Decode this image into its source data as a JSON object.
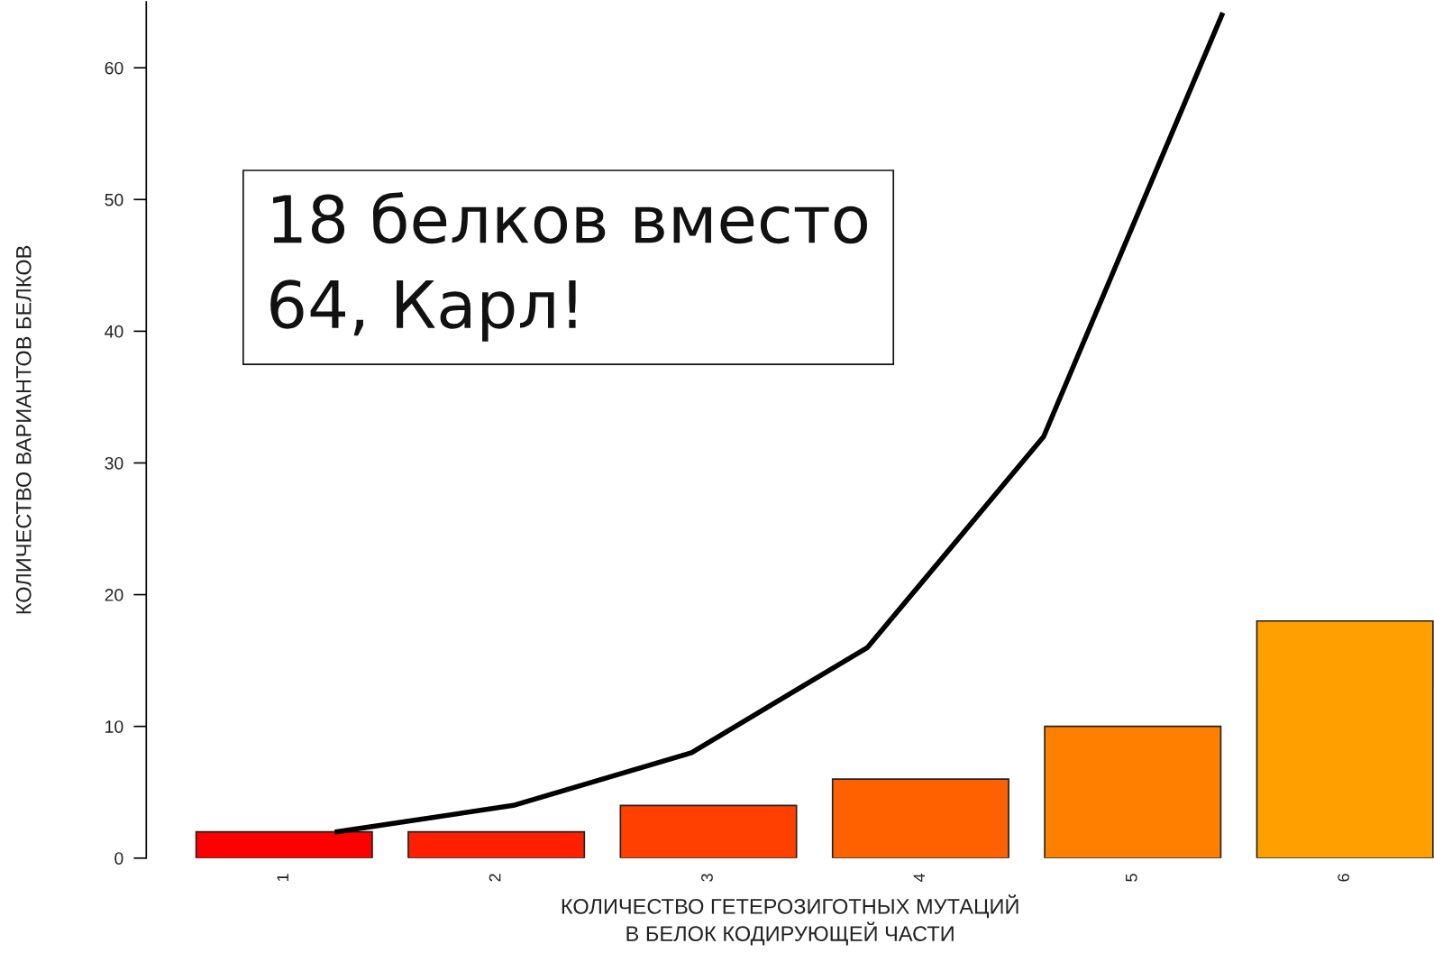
{
  "chart_data": {
    "type": "bar",
    "xlabel": "КОЛИЧЕСТВО ГЕТЕРОЗИГОТНЫХ МУТАЦИЙ\nВ БЕЛОК КОДИРУЮЩЕЙ ЧАСТИ",
    "ylabel": "КОЛИЧЕСТВО ВАРИАНТОВ БЕЛКОВ",
    "annotations": [
      "18 белков вместо\n64, Карл!"
    ],
    "series": [
      {
        "x": [
          1,
          2,
          3,
          4,
          5,
          6
        ],
        "values": [
          2,
          2,
          4,
          6,
          10,
          18
        ],
        "colors": [
          "#ff0000",
          "#ff2000",
          "#ff4000",
          "#ff6000",
          "#ff8000",
          "#ffa000"
        ]
      },
      {
        "type": "line",
        "x": [
          1.25,
          2.08,
          2.92,
          3.75,
          4.58,
          5.42
        ],
        "values": [
          2,
          4,
          8,
          16,
          32,
          64
        ],
        "color": "#000000"
      }
    ],
    "xlim": [
      0.35,
      6.42
    ],
    "xticks": [
      1,
      2,
      3,
      4,
      5,
      6
    ],
    "ylim": [
      0,
      65
    ],
    "yticks": [
      0,
      10,
      20,
      30,
      40,
      50,
      60
    ],
    "grid": false,
    "legend": false
  }
}
